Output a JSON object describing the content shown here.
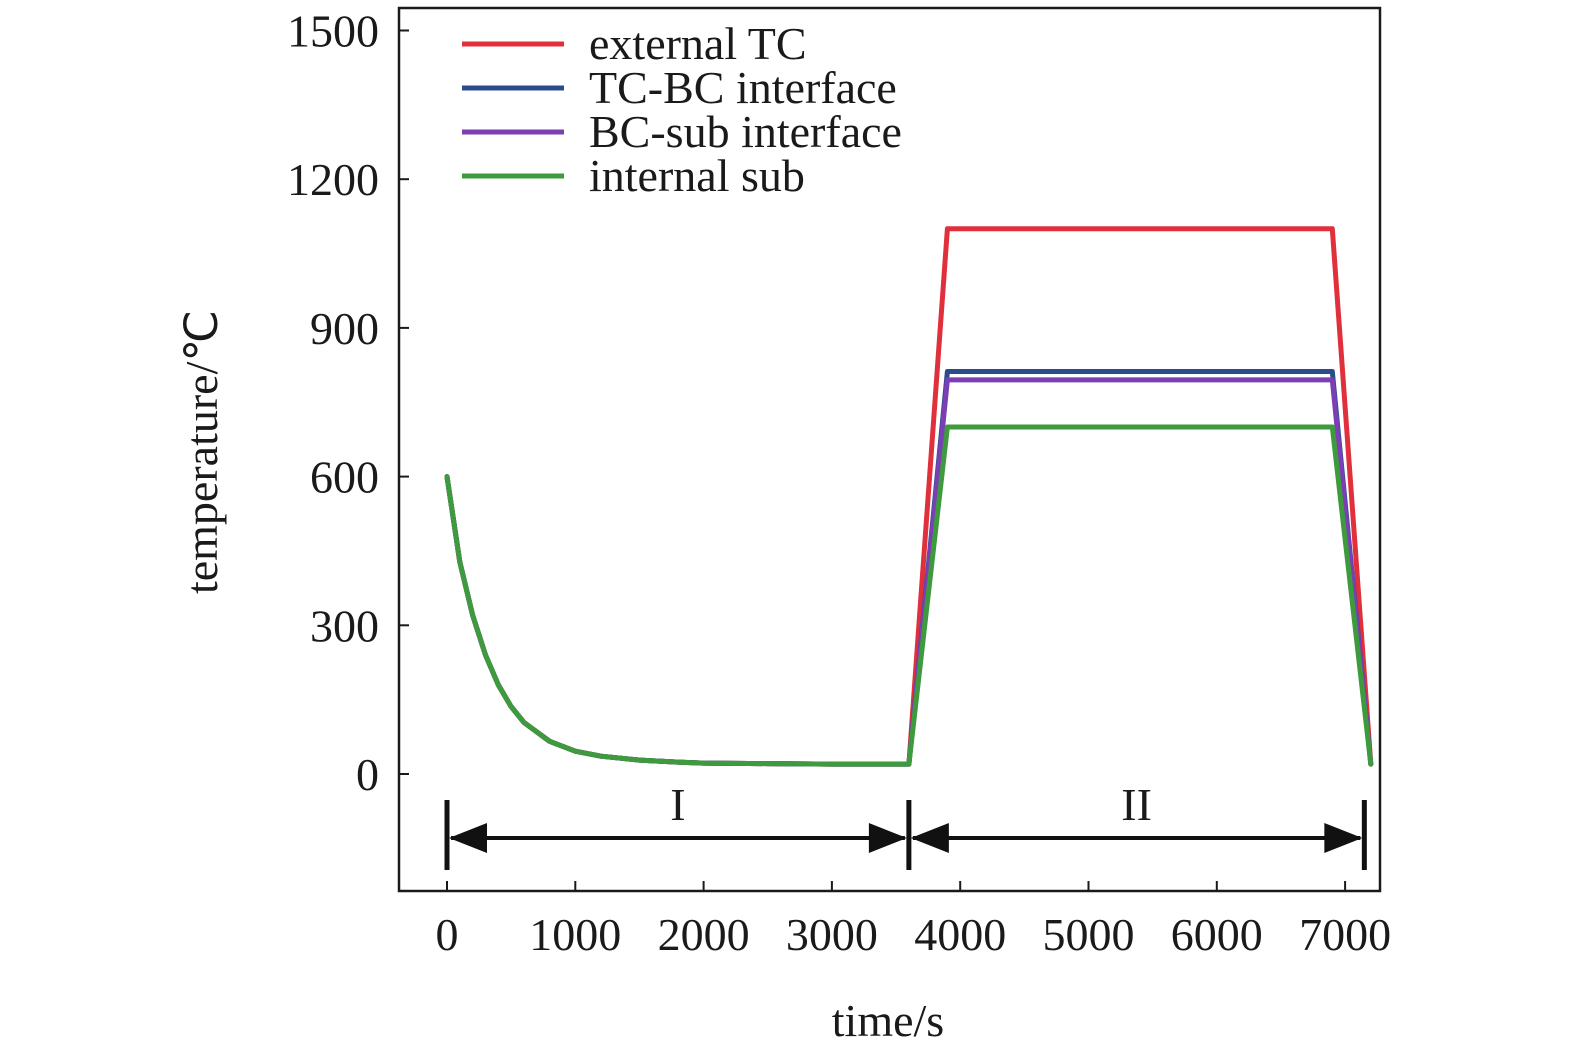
{
  "chart_data": {
    "type": "line",
    "title": "",
    "xlabel": "time/s",
    "ylabel": "temperature/℃",
    "xlim": [
      -400,
      7250
    ],
    "ylim": [
      -240,
      1540
    ],
    "xticks": [
      0,
      1000,
      2000,
      3000,
      4000,
      5000,
      6000,
      7000
    ],
    "yticks": [
      0,
      300,
      600,
      900,
      1200,
      1500
    ],
    "xtick_labels": [
      "0",
      "1000",
      "2000",
      "3000",
      "4000",
      "5000",
      "6000",
      "7000"
    ],
    "ytick_labels": [
      "0",
      "300",
      "600",
      "900",
      "1200",
      "1500"
    ],
    "grid": false,
    "legend_position": "top-left",
    "series": [
      {
        "name": "external TC",
        "color": "#e0303c",
        "x": [
          0,
          100,
          200,
          300,
          400,
          500,
          600,
          800,
          1000,
          1200,
          1500,
          1800,
          2000,
          2500,
          3000,
          3600,
          3900,
          6900,
          7200
        ],
        "y": [
          600,
          428,
          320,
          240,
          180,
          136,
          104,
          66,
          46,
          36,
          28,
          24,
          22,
          21,
          20,
          20,
          1100,
          1100,
          20
        ]
      },
      {
        "name": "TC-BC interface",
        "color": "#2b4c8c",
        "x": [
          0,
          100,
          200,
          300,
          400,
          500,
          600,
          800,
          1000,
          1200,
          1500,
          1800,
          2000,
          2500,
          3000,
          3600,
          3900,
          6900,
          7200
        ],
        "y": [
          600,
          428,
          320,
          240,
          180,
          136,
          104,
          66,
          46,
          36,
          28,
          24,
          22,
          21,
          20,
          20,
          812,
          812,
          20
        ]
      },
      {
        "name": "BC-sub interface",
        "color": "#7a3fb5",
        "x": [
          0,
          100,
          200,
          300,
          400,
          500,
          600,
          800,
          1000,
          1200,
          1500,
          1800,
          2000,
          2500,
          3000,
          3600,
          3900,
          6900,
          7200
        ],
        "y": [
          600,
          428,
          320,
          240,
          180,
          136,
          104,
          66,
          46,
          36,
          28,
          24,
          22,
          21,
          20,
          20,
          795,
          795,
          20
        ]
      },
      {
        "name": "internal sub",
        "color": "#3d9a3d",
        "x": [
          0,
          100,
          200,
          300,
          400,
          500,
          600,
          800,
          1000,
          1200,
          1500,
          1800,
          2000,
          2500,
          3000,
          3600,
          3900,
          6900,
          7200
        ],
        "y": [
          600,
          428,
          320,
          240,
          180,
          136,
          104,
          66,
          46,
          36,
          28,
          24,
          22,
          21,
          20,
          20,
          700,
          700,
          20
        ]
      }
    ],
    "regions": [
      {
        "label": "I",
        "x_start": 0,
        "x_end": 3600
      },
      {
        "label": "II",
        "x_start": 3600,
        "x_end": 7150
      }
    ]
  }
}
